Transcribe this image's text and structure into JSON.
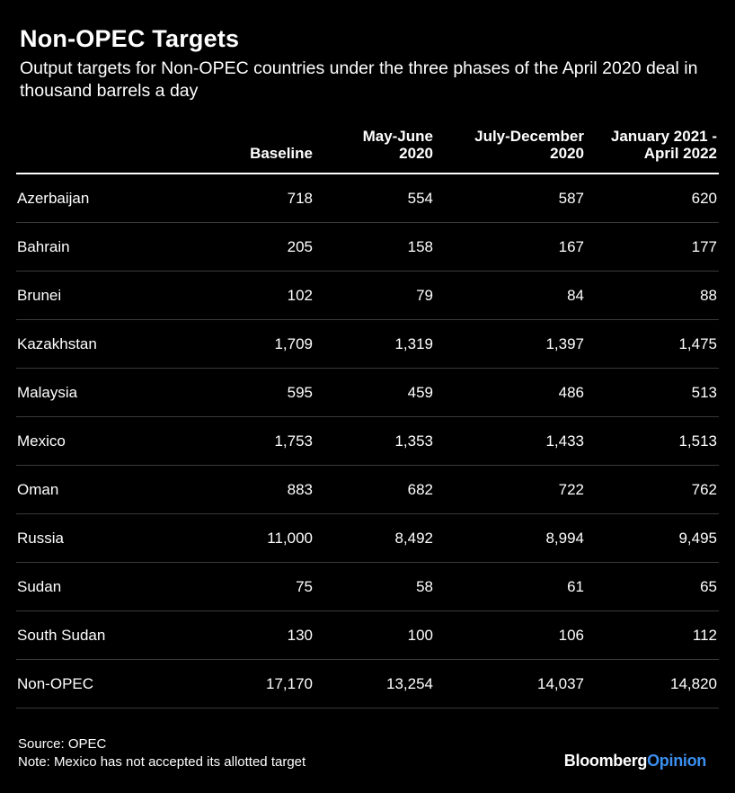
{
  "title": "Non-OPEC Targets",
  "subtitle": "Output targets for Non-OPEC countries under the three phases of the April 2020 deal in thousand barrels a day",
  "chart_data": {
    "type": "table",
    "columns": [
      "",
      "Baseline",
      [
        "May-June",
        "2020"
      ],
      [
        "July-December",
        "2020"
      ],
      [
        "January 2021 -",
        "April 2022"
      ]
    ],
    "rows": [
      [
        "Azerbaijan",
        "718",
        "554",
        "587",
        "620"
      ],
      [
        "Bahrain",
        "205",
        "158",
        "167",
        "177"
      ],
      [
        "Brunei",
        "102",
        "79",
        "84",
        "88"
      ],
      [
        "Kazakhstan",
        "1,709",
        "1,319",
        "1,397",
        "1,475"
      ],
      [
        "Malaysia",
        "595",
        "459",
        "486",
        "513"
      ],
      [
        "Mexico",
        "1,753",
        "1,353",
        "1,433",
        "1,513"
      ],
      [
        "Oman",
        "883",
        "682",
        "722",
        "762"
      ],
      [
        "Russia",
        "11,000",
        "8,492",
        "8,994",
        "9,495"
      ],
      [
        "Sudan",
        "75",
        "58",
        "61",
        "65"
      ],
      [
        "South Sudan",
        "130",
        "100",
        "106",
        "112"
      ],
      [
        "Non-OPEC",
        "17,170",
        "13,254",
        "14,037",
        "14,820"
      ]
    ]
  },
  "footer": {
    "source": "Source: OPEC",
    "note": "Note: Mexico has not accepted its allotted target"
  },
  "logo": {
    "brand": "Bloomberg",
    "opinion": "Opinion"
  },
  "colors": {
    "background": "#000000",
    "text": "#ffffff",
    "accent": "#3b8ff0",
    "row_divider": "#3a3a3a"
  }
}
